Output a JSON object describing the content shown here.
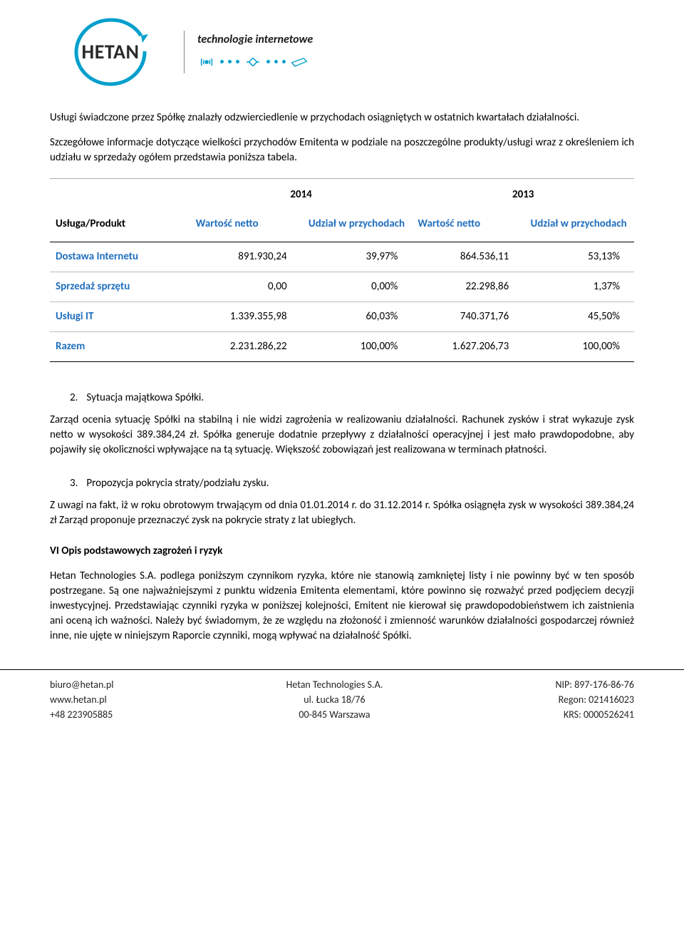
{
  "logo": {
    "brand": "HETAN",
    "tagline": "technologie internetowe",
    "circle_color": "#009fcc",
    "text_color": "#2a2a2a"
  },
  "paragraphs": {
    "intro1": "Usługi świadczone przez Spółkę znalazły odzwierciedlenie w przychodach osiągniętych w ostatnich kwartałach działalności.",
    "intro2": "Szczegółowe informacje dotyczące wielkości przychodów Emitenta w podziale na poszczególne produkty/usługi  wraz z określeniem ich udziału w sprzedaży ogółem przedstawia poniższa tabela.",
    "situation_body": "Zarząd ocenia sytuację Spółki na stabilną i nie widzi zagrożenia w realizowaniu działalności. Rachunek zysków i strat wykazuje zysk netto w wysokości 389.384,24 zł. Spółka generuje dodatnie przepływy z działalności operacyjnej i jest mało prawdopodobne, aby pojawiły się okoliczności wpływające na tą sytuację. Większość zobowiązań jest realizowana w terminach płatności.",
    "proposal_body": "Z uwagi na fakt, iż w roku obrotowym trwającym od dnia 01.01.2014 r. do 31.12.2014 r. Spółka osiągnęła zysk w wysokości 389.384,24 zł Zarząd proponuje przeznaczyć zysk na pokrycie straty z lat ubiegłych.",
    "risks_body": "Hetan Technologies S.A. podlega poniższym czynnikom ryzyka, które nie stanowią zamkniętej listy i nie powinny być w ten sposób postrzegane. Są one najważniejszymi z punktu widzenia Emitenta elementami, które powinno się rozważyć przed podjęciem decyzji inwestycyjnej. Przedstawiając czynniki ryzyka w poniższej kolejności, Emitent nie kierował się prawdopodobieństwem ich zaistnienia ani oceną ich ważności. Należy być świadomym, że ze względu na złożoność i zmienność warunków działalności gospodarczej również inne, nie ujęte w niniejszym Raporcie czynniki, mogą wpływać na działalność Spółki."
  },
  "list_items": {
    "situation_num": "2.",
    "situation_title": "Sytuacja majątkowa Spółki.",
    "proposal_num": "3.",
    "proposal_title": "Propozycja pokrycia straty/podziału zysku."
  },
  "headings": {
    "risks": "VI Opis podstawowych zagrożeń i ryzyk"
  },
  "table": {
    "header_col1": "Usługa/Produkt",
    "year1": "2014",
    "year2": "2013",
    "col_value": "Wartość netto",
    "col_share": "Udział w przychodach",
    "accent_color": "#1f6fbf",
    "rows": [
      {
        "label": "Dostawa Internetu",
        "v1": "891.930,24",
        "s1": "39,97%",
        "v2": "864.536,11",
        "s2": "53,13%"
      },
      {
        "label": "Sprzedaż sprzętu",
        "v1": "0,00",
        "s1": "0,00%",
        "v2": "22.298,86",
        "s2": "1,37%"
      },
      {
        "label": "Usługi IT",
        "v1": "1.339.355,98",
        "s1": "60,03%",
        "v2": "740.371,76",
        "s2": "45,50%"
      },
      {
        "label": "Razem",
        "v1": "2.231.286,22",
        "s1": "100,00%",
        "v2": "1.627.206,73",
        "s2": "100,00%"
      }
    ]
  },
  "footer": {
    "left": {
      "email": "biuro@hetan.pl",
      "web": "www.hetan.pl",
      "phone": "+48 223905885"
    },
    "center": {
      "company": "Hetan Technologies S.A.",
      "street": "ul. Łucka 18/76",
      "city": "00-845 Warszawa"
    },
    "right": {
      "nip": "NIP: 897-176-86-76",
      "regon": "Regon: 021416023",
      "krs": "KRS: 0000526241"
    }
  }
}
